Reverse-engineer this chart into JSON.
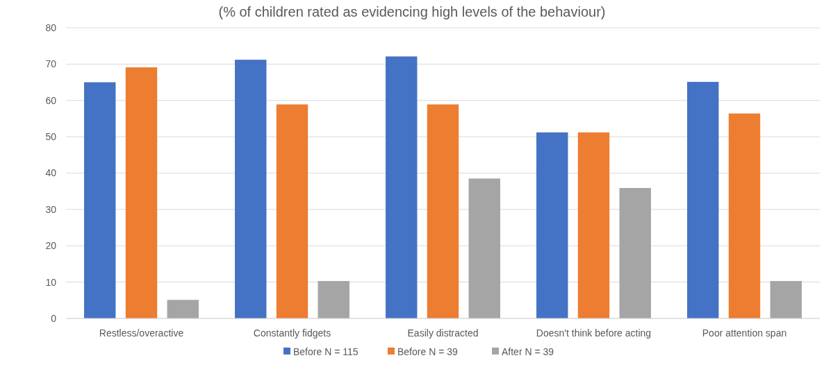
{
  "chart_data": {
    "type": "bar",
    "title": "(% of children rated as evidencing high levels of the behaviour)",
    "categories": [
      "Restless/overactive",
      "Constantly fidgets",
      "Easily distracted",
      "Doesn't think before acting",
      "Poor attention span"
    ],
    "series": [
      {
        "name": "Before N = 115",
        "color": "#4472c4",
        "values": [
          65,
          71.2,
          72.1,
          51.2,
          65.1
        ]
      },
      {
        "name": "Before N = 39",
        "color": "#ed7d31",
        "values": [
          69.1,
          58.9,
          58.9,
          51.2,
          56.4
        ]
      },
      {
        "name": "After N = 39",
        "color": "#a5a5a5",
        "values": [
          5.1,
          10.3,
          38.5,
          35.9,
          10.3
        ]
      }
    ],
    "ylim": [
      0,
      80
    ],
    "yticks": [
      0,
      10,
      20,
      30,
      40,
      50,
      60,
      70,
      80
    ],
    "grid": "y",
    "legend": "bottom"
  }
}
